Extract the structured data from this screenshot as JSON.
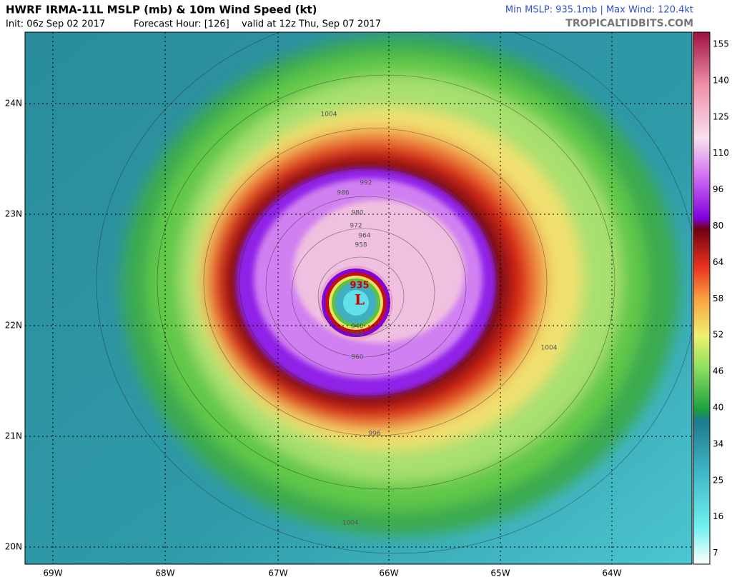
{
  "header": {
    "title": "HWRF IRMA-11L MSLP (mb) & 10m Wind Speed (kt)",
    "init": "Init: 06z Sep 02 2017",
    "forecast_hour": "Forecast Hour: [126]",
    "valid": "valid at 12z Thu, Sep 07 2017",
    "stats": "Min MSLP: 935.1mb | Max Wind: 120.4kt",
    "site": "TROPICALTIDBITS.COM"
  },
  "map": {
    "lat_labels": [
      "24N",
      "23N",
      "22N",
      "21N",
      "20N"
    ],
    "lon_labels": [
      "69W",
      "68W",
      "67W",
      "66W",
      "65W",
      "64W"
    ],
    "center": {
      "pressure": "935",
      "symbol": "L"
    },
    "contour_labels": [
      "1004",
      "992",
      "986",
      "980",
      "972",
      "964",
      "958",
      "940",
      "948",
      "960",
      "996",
      "1004",
      "1004"
    ]
  },
  "colorbar": {
    "labels": [
      "155",
      "140",
      "125",
      "110",
      "96",
      "80",
      "64",
      "58",
      "52",
      "46",
      "40",
      "34",
      "25",
      "16",
      "7"
    ]
  }
}
